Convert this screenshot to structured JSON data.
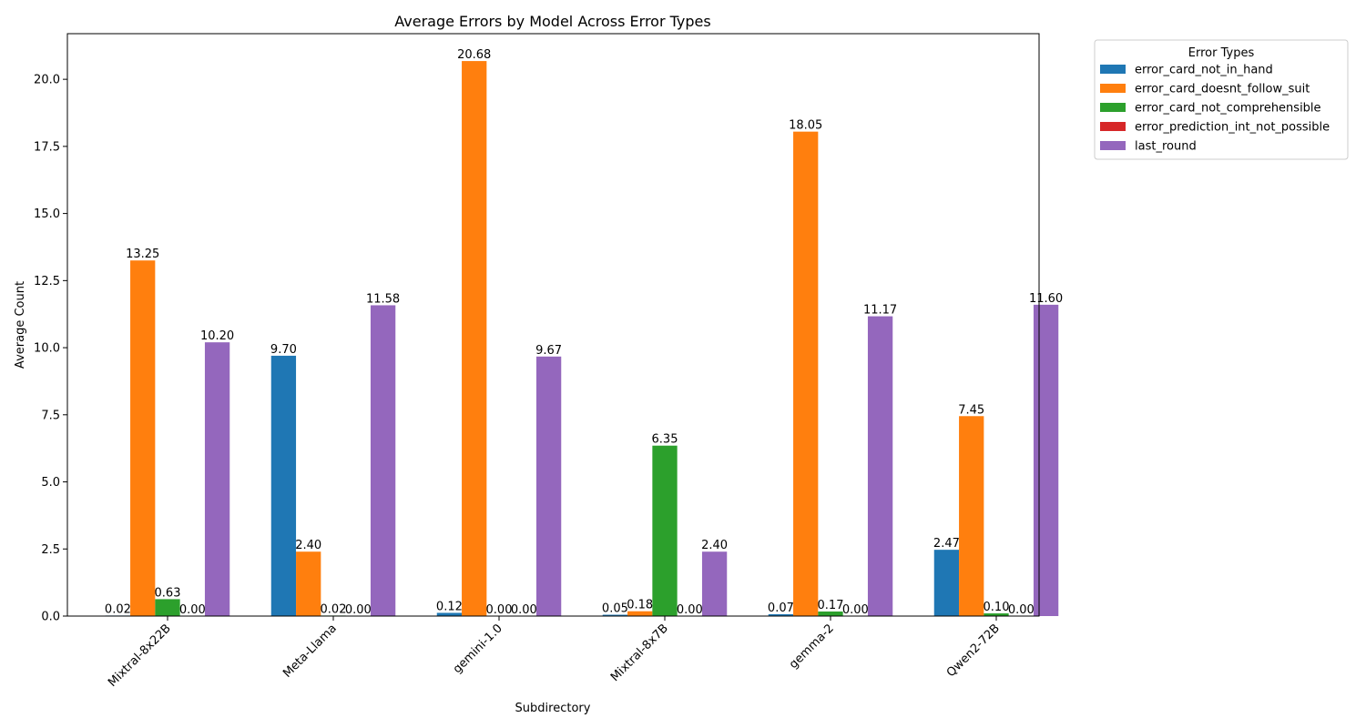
{
  "chart_data": {
    "type": "bar",
    "title": "Average Errors by Model Across Error Types",
    "xlabel": "Subdirectory",
    "ylabel": "Average Count",
    "ylim": [
      0,
      21.7
    ],
    "yticks": [
      "0.0",
      "2.5",
      "5.0",
      "7.5",
      "10.0",
      "12.5",
      "15.0",
      "17.5",
      "20.0"
    ],
    "categories": [
      "Mixtral-8x22B",
      "Meta-Llama",
      "gemini-1.0",
      "Mixtral-8x7B",
      "gemma-2",
      "Qwen2-72B"
    ],
    "legend_title": "Error Types",
    "legend_position": "outside-top-right",
    "grid": false,
    "series": [
      {
        "name": "error_card_not_in_hand",
        "color": "#1f77b4",
        "values": [
          0.02,
          9.7,
          0.12,
          0.05,
          0.07,
          2.47
        ],
        "labels": [
          "0.02",
          "9.70",
          "0.12",
          "0.05",
          "0.07",
          "2.47"
        ]
      },
      {
        "name": "error_card_doesnt_follow_suit",
        "color": "#ff7f0e",
        "values": [
          13.25,
          2.4,
          20.68,
          0.18,
          18.05,
          7.45
        ],
        "labels": [
          "13.25",
          "2.40",
          "20.68",
          "0.18",
          "18.05",
          "7.45"
        ]
      },
      {
        "name": "error_card_not_comprehensible",
        "color": "#2ca02c",
        "values": [
          0.63,
          0.02,
          0.0,
          6.35,
          0.17,
          0.1
        ],
        "labels": [
          "0.63",
          "0.02",
          "0.00",
          "6.35",
          "0.17",
          "0.10"
        ]
      },
      {
        "name": "error_prediction_int_not_possible",
        "color": "#d62728",
        "values": [
          0.0,
          0.0,
          0.0,
          0.0,
          0.0,
          0.0
        ],
        "labels": [
          "0.00",
          "0.00",
          "0.00",
          "0.00",
          "0.00",
          "0.00"
        ]
      },
      {
        "name": "last_round",
        "color": "#9467bd",
        "values": [
          10.2,
          11.58,
          9.67,
          2.4,
          11.17,
          11.6
        ],
        "labels": [
          "10.20",
          "11.58",
          "9.67",
          "2.40",
          "11.17",
          "11.60"
        ]
      }
    ]
  }
}
